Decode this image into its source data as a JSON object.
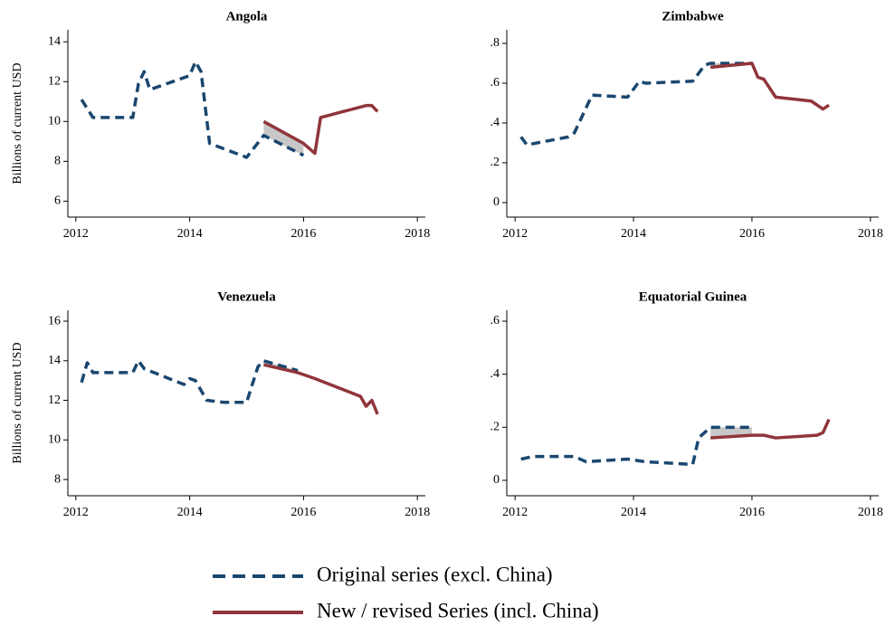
{
  "chart_data": [
    {
      "type": "line",
      "title": "Angola",
      "ylabel": "Billions of current USD",
      "x": [
        2012.1,
        2012.3,
        2013.0,
        2013.1,
        2013.2,
        2013.3,
        2014.0,
        2014.1,
        2014.2,
        2014.35,
        2015.0,
        2015.3,
        2016.0,
        2016.2,
        2016.3,
        2017.1,
        2017.2,
        2017.3
      ],
      "series": [
        {
          "name": "Original series (excl. China)",
          "color": "#1a476f",
          "values": [
            11.1,
            10.2,
            10.2,
            11.9,
            12.5,
            11.6,
            12.3,
            13.0,
            12.5,
            8.9,
            8.2,
            9.3,
            8.3,
            null,
            null,
            null,
            null,
            null
          ]
        },
        {
          "name": "New / revised Series (incl. China)",
          "color": "#90353b",
          "values": [
            null,
            null,
            null,
            null,
            null,
            null,
            null,
            null,
            null,
            null,
            null,
            10.0,
            8.9,
            8.4,
            10.2,
            10.8,
            10.8,
            10.5
          ]
        }
      ],
      "xlim": [
        2011.86,
        2018.14
      ],
      "xticks": [
        2012,
        2014,
        2016,
        2018
      ],
      "ylim": [
        5.2,
        14.6
      ],
      "yticks": [
        6,
        8,
        10,
        12,
        14
      ]
    },
    {
      "type": "line",
      "title": "Zimbabwe",
      "x": [
        2012.1,
        2012.2,
        2012.9,
        2013.0,
        2013.3,
        2013.9,
        2014.1,
        2014.2,
        2015.0,
        2015.2,
        2015.3,
        2016.0,
        2016.1,
        2016.2,
        2016.4,
        2017.0,
        2017.2,
        2017.3
      ],
      "series": [
        {
          "name": "Original series (excl. China)",
          "color": "#1a476f",
          "values": [
            0.33,
            0.29,
            0.33,
            0.35,
            0.54,
            0.53,
            0.61,
            0.6,
            0.61,
            0.69,
            0.7,
            0.7,
            null,
            null,
            null,
            null,
            null,
            null
          ]
        },
        {
          "name": "New / revised Series (incl. China)",
          "color": "#90353b",
          "values": [
            null,
            null,
            null,
            null,
            null,
            null,
            null,
            null,
            null,
            null,
            0.68,
            0.7,
            0.63,
            0.62,
            0.53,
            0.51,
            0.47,
            0.49
          ]
        }
      ],
      "xlim": [
        2011.86,
        2018.14
      ],
      "xticks": [
        2012,
        2014,
        2016,
        2018
      ],
      "ylim": [
        -0.073,
        0.868
      ],
      "yticks": [
        0,
        {
          "value": 0.2,
          "label": ".2"
        },
        {
          "value": 0.4,
          "label": ".4"
        },
        {
          "value": 0.6,
          "label": ".6"
        },
        {
          "value": 0.8,
          "label": ".8"
        }
      ]
    },
    {
      "type": "line",
      "title": "Venezuela",
      "ylabel": "Billions of current USD",
      "x": [
        2012.1,
        2012.2,
        2012.3,
        2013.0,
        2013.1,
        2013.2,
        2013.9,
        2014.0,
        2014.1,
        2014.3,
        2014.6,
        2015.0,
        2015.2,
        2015.3,
        2015.9,
        2016.0,
        2016.2,
        2017.0,
        2017.1,
        2017.2,
        2017.3
      ],
      "series": [
        {
          "name": "Original series (excl. China)",
          "color": "#1a476f",
          "values": [
            12.9,
            13.9,
            13.4,
            13.4,
            14.0,
            13.6,
            12.8,
            13.1,
            13.0,
            12.0,
            11.9,
            11.9,
            13.7,
            14.0,
            13.5,
            null,
            null,
            null,
            null,
            null,
            null
          ]
        },
        {
          "name": "New / revised Series (incl. China)",
          "color": "#90353b",
          "values": [
            null,
            null,
            null,
            null,
            null,
            null,
            null,
            null,
            null,
            null,
            null,
            null,
            null,
            13.8,
            13.4,
            13.3,
            13.1,
            12.2,
            11.7,
            12.0,
            11.3
          ]
        }
      ],
      "xlim": [
        2011.86,
        2018.14
      ],
      "xticks": [
        2012,
        2014,
        2016,
        2018
      ],
      "ylim": [
        7.18,
        16.55
      ],
      "yticks": [
        8,
        10,
        12,
        14,
        16
      ]
    },
    {
      "type": "line",
      "title": "Equatorial Guinea",
      "x": [
        2012.1,
        2012.3,
        2013.0,
        2013.2,
        2013.9,
        2014.2,
        2015.0,
        2015.1,
        2015.3,
        2016.0,
        2016.2,
        2016.4,
        2017.1,
        2017.2,
        2017.3
      ],
      "series": [
        {
          "name": "Original series (excl. China)",
          "color": "#1a476f",
          "values": [
            0.08,
            0.09,
            0.09,
            0.07,
            0.08,
            0.07,
            0.06,
            0.16,
            0.2,
            0.2,
            null,
            null,
            null,
            null,
            null
          ]
        },
        {
          "name": "New / revised Series (incl. China)",
          "color": "#90353b",
          "values": [
            null,
            null,
            null,
            null,
            null,
            null,
            null,
            null,
            0.16,
            0.17,
            0.17,
            0.16,
            0.17,
            0.18,
            0.23
          ]
        }
      ],
      "xlim": [
        2011.86,
        2018.14
      ],
      "xticks": [
        2012,
        2014,
        2016,
        2018
      ],
      "ylim": [
        -0.058,
        0.641
      ],
      "yticks": [
        0,
        {
          "value": 0.2,
          "label": ".2"
        },
        {
          "value": 0.4,
          "label": ".4"
        },
        {
          "value": 0.6,
          "label": ".6"
        }
      ]
    }
  ]
}
